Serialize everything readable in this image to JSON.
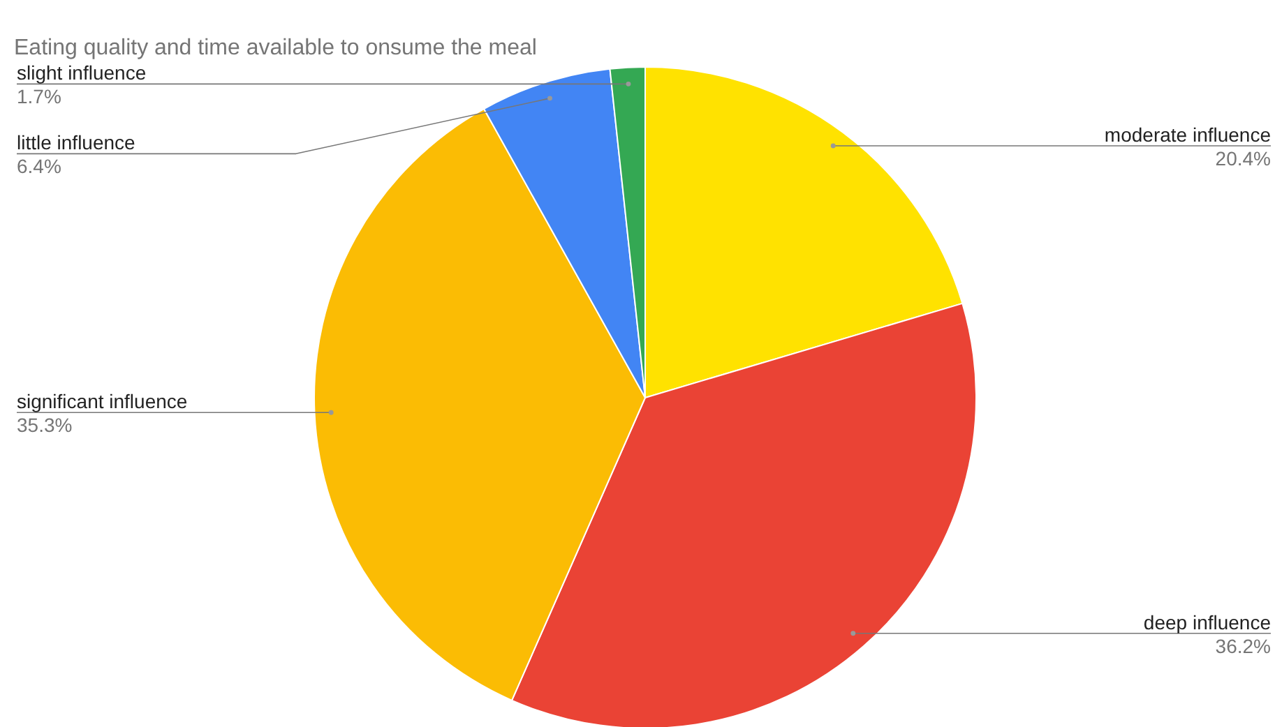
{
  "chart_data": {
    "type": "pie",
    "title": "Eating quality and time available to onsume the meal",
    "categories": [
      "moderate influence",
      "deep influence",
      "significant influence",
      "little influence",
      "slight influence"
    ],
    "values": [
      20.4,
      36.2,
      35.3,
      6.4,
      1.7
    ],
    "value_labels": [
      "20.4%",
      "36.2%",
      "35.3%",
      "6.4%",
      "1.7%"
    ],
    "colors": [
      "#ffe200",
      "#ea4335",
      "#fbbc04",
      "#4285f4",
      "#34a853"
    ],
    "legend": false
  }
}
